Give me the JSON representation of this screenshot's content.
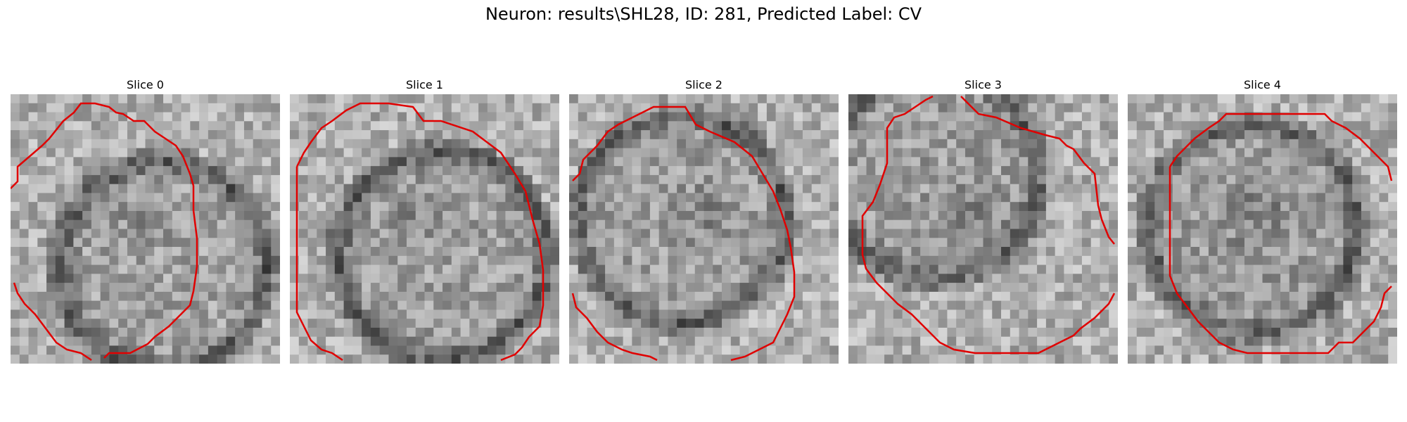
{
  "figure": {
    "title": "Neuron: results\\SHL28, ID: 281, Predicted Label: CV",
    "panels": [
      {
        "title": "Slice 0"
      },
      {
        "title": "Slice 1"
      },
      {
        "title": "Slice 2"
      },
      {
        "title": "Slice 3"
      },
      {
        "title": "Slice 4"
      }
    ],
    "colors": {
      "contour": "#e00000"
    }
  }
}
